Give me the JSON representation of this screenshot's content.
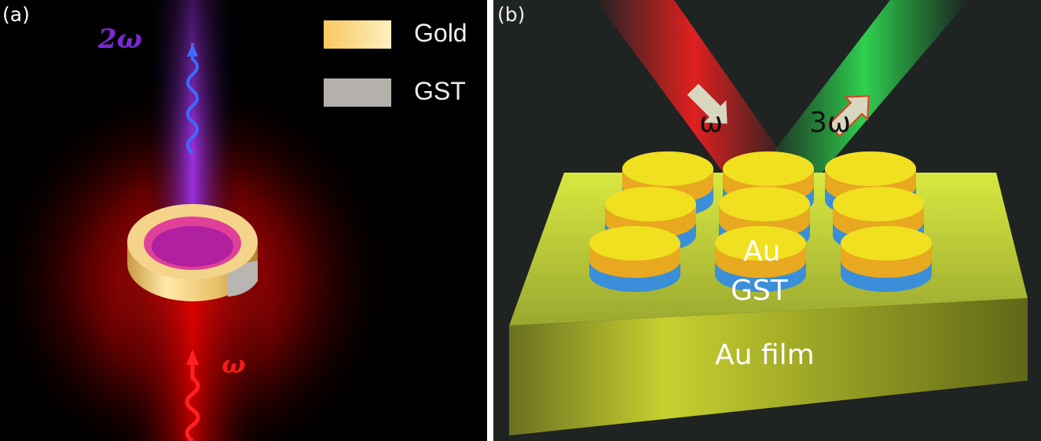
{
  "panel_a": {
    "label": "(a)",
    "harmonic_label": "2ω",
    "fundamental_label": "ω",
    "legend": [
      {
        "label": "Gold",
        "color": "#f5d27a"
      },
      {
        "label": "GST",
        "color": "#b4b0ac"
      }
    ],
    "colors": {
      "beam_up": "#8a2be2",
      "beam_in": "#d40000",
      "arrow_up": "#3b6cff",
      "arrow_in": "#ff2020"
    }
  },
  "panel_b": {
    "label": "(b)",
    "incident_label": "ω",
    "harmonic_label": "3ω",
    "disk_top_label": "Au",
    "disk_bottom_label": "GST",
    "substrate_label": "Au film",
    "colors": {
      "beam_in": "#e02020",
      "beam_out": "#20c040",
      "gold": "#f0e020",
      "gst": "#3a8fd8",
      "film": "#c8d830"
    }
  }
}
